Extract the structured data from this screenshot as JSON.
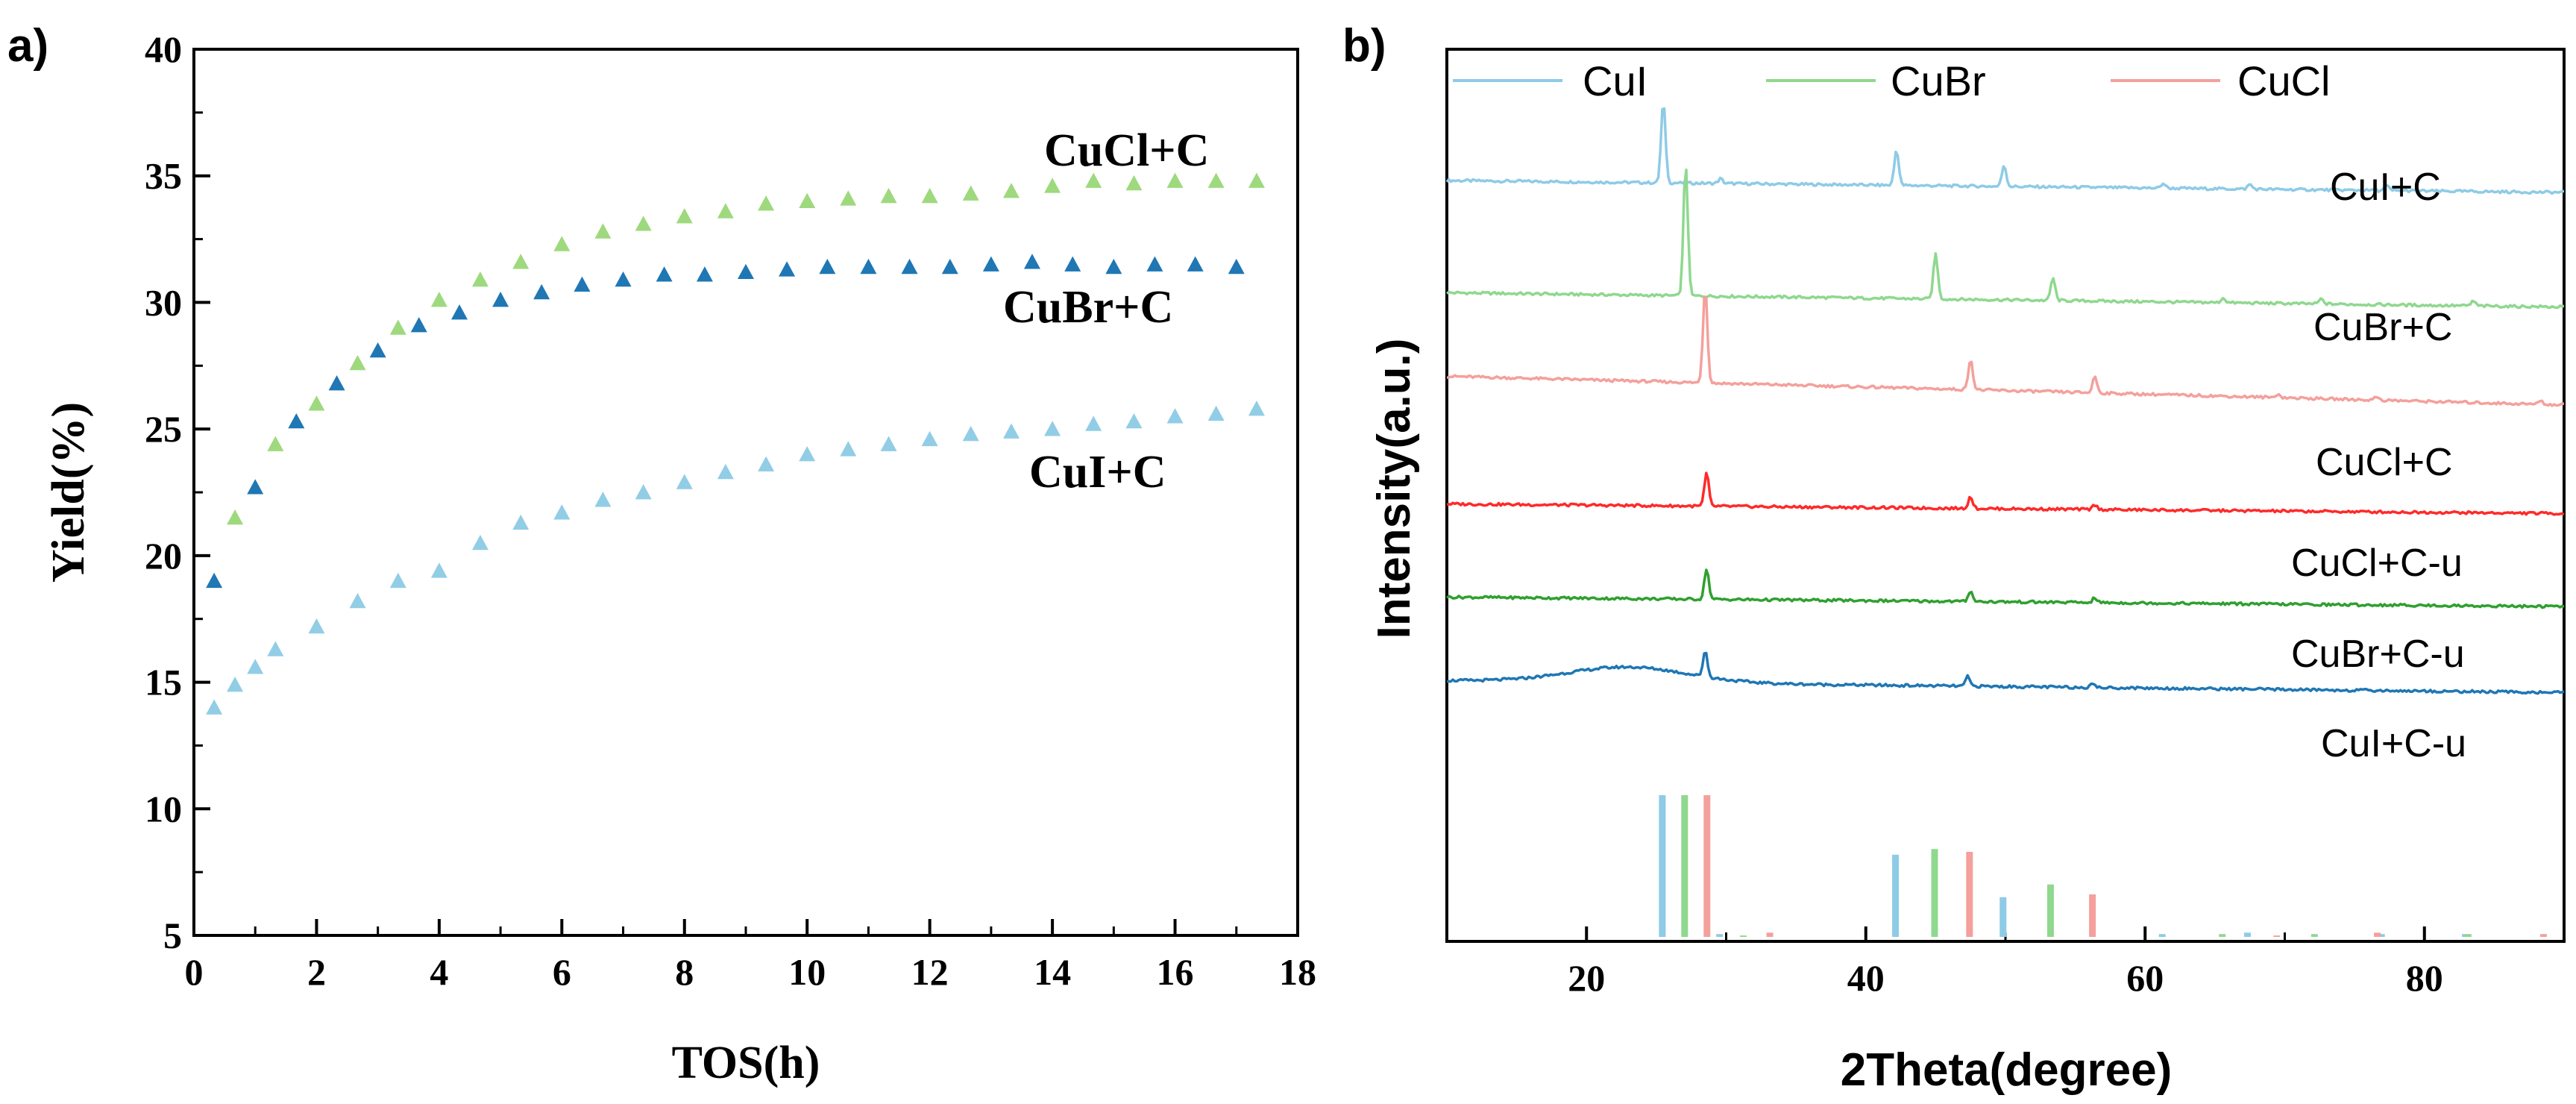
{
  "panel_a_label": "a)",
  "panel_b_label": "b)",
  "colors": {
    "cucl_c": "#9ed97e",
    "cubr_c": "#1f77b4",
    "cui_c": "#92cde6",
    "cui_ref": "#8ecbe6",
    "cubr_ref": "#8fd88f",
    "cucl_ref": "#f4a09c",
    "cucl_c_u": "#ff2a2a",
    "cubr_c_u": "#2fa02f",
    "cui_c_u": "#1f77b4"
  },
  "chart_data": [
    {
      "type": "scatter",
      "marker": "triangle",
      "xlabel": "TOS(h)",
      "ylabel": "Yield(%)",
      "xlim": [
        0,
        18
      ],
      "ylim": [
        5,
        40
      ],
      "xticks": [
        "0",
        "2",
        "4",
        "6",
        "8",
        "10",
        "12",
        "14",
        "16",
        "18"
      ],
      "yticks": [
        "5",
        "10",
        "15",
        "20",
        "25",
        "30",
        "35",
        "40"
      ],
      "series": [
        {
          "name": "CuCl+C",
          "x": [
            0.67,
            1.33,
            2.0,
            2.67,
            3.33,
            4.0,
            4.67,
            5.33,
            6.0,
            6.67,
            7.33,
            8.0,
            8.67,
            9.33,
            10.0,
            10.67,
            11.33,
            12.0,
            12.67,
            13.33,
            14.0,
            14.67,
            15.33,
            16.0,
            16.67,
            17.33
          ],
          "y": [
            21.5,
            24.4,
            26.0,
            27.6,
            29.0,
            30.1,
            30.9,
            31.6,
            32.3,
            32.8,
            33.1,
            33.4,
            33.6,
            33.9,
            34.0,
            34.1,
            34.2,
            34.2,
            34.3,
            34.4,
            34.6,
            34.8,
            34.7,
            34.8,
            34.8,
            34.8
          ]
        },
        {
          "name": "CuBr+C",
          "x": [
            0.33,
            1.0,
            1.67,
            2.33,
            3.0,
            3.67,
            4.33,
            5.0,
            5.67,
            6.33,
            7.0,
            7.67,
            8.33,
            9.0,
            9.67,
            10.33,
            11.0,
            11.67,
            12.33,
            13.0,
            13.67,
            14.33,
            15.0,
            15.67,
            16.33,
            17.0
          ],
          "y": [
            19.0,
            22.7,
            25.3,
            26.8,
            28.1,
            29.1,
            29.6,
            30.1,
            30.4,
            30.7,
            30.9,
            31.1,
            31.1,
            31.2,
            31.3,
            31.4,
            31.4,
            31.4,
            31.4,
            31.5,
            31.6,
            31.5,
            31.4,
            31.5,
            31.5,
            31.4
          ]
        },
        {
          "name": "CuI+C",
          "x": [
            0.33,
            0.67,
            1.0,
            1.33,
            2.0,
            2.67,
            3.33,
            4.0,
            4.67,
            5.33,
            6.0,
            6.67,
            7.33,
            8.0,
            8.67,
            9.33,
            10.0,
            10.67,
            11.33,
            12.0,
            12.67,
            13.33,
            14.0,
            14.67,
            15.33,
            16.0,
            16.67,
            17.33
          ],
          "y": [
            14.0,
            14.9,
            15.6,
            16.3,
            17.2,
            18.2,
            19.0,
            19.4,
            20.5,
            21.3,
            21.7,
            22.2,
            22.5,
            22.9,
            23.3,
            23.6,
            24.0,
            24.2,
            24.4,
            24.6,
            24.8,
            24.9,
            25.0,
            25.2,
            25.3,
            25.5,
            25.6,
            25.8
          ]
        }
      ],
      "labels": [
        {
          "text": "CuCl+C",
          "series": "CuCl+C"
        },
        {
          "text": "CuBr+C",
          "series": "CuBr+C"
        },
        {
          "text": "CuI+C",
          "series": "CuI+C"
        }
      ]
    },
    {
      "type": "line",
      "xlabel": "2Theta(degree)",
      "ylabel": "Intensity(a.u.)",
      "xlim": [
        10,
        90
      ],
      "xticks": [
        "20",
        "40",
        "60",
        "80"
      ],
      "legend": [
        "CuI",
        "CuBr",
        "CuCl"
      ],
      "legend_position": "top",
      "traces": [
        {
          "name": "CuI+C",
          "color_key": "cui_ref",
          "baseline_start": 6.0,
          "baseline_end": 5.0,
          "offset": 1,
          "peaks": [
            [
              25.5,
              6.8
            ],
            [
              42.2,
              3.0
            ],
            [
              49.9,
              1.8
            ],
            [
              29.6,
              0.4
            ],
            [
              61.3,
              0.4
            ],
            [
              67.5,
              0.4
            ],
            [
              77.3,
              0.4
            ]
          ]
        },
        {
          "name": "CuBr+C",
          "color_key": "cubr_ref",
          "baseline_start": 4.6,
          "baseline_end": 3.4,
          "offset": 2,
          "peaks": [
            [
              27.1,
              11.0
            ],
            [
              45.0,
              3.8
            ],
            [
              53.4,
              1.9
            ],
            [
              65.6,
              0.4
            ],
            [
              72.6,
              0.4
            ],
            [
              83.5,
              0.4
            ]
          ]
        },
        {
          "name": "CuCl+C",
          "color_key": "cucl_ref",
          "baseline_start": 5.6,
          "baseline_end": 3.2,
          "offset": 3,
          "peaks": [
            [
              28.5,
              8.0
            ],
            [
              47.5,
              2.6
            ],
            [
              56.4,
              1.4
            ],
            [
              69.5,
              0.3
            ],
            [
              76.6,
              0.3
            ],
            [
              88.3,
              0.3
            ]
          ]
        },
        {
          "name": "CuCl+C-u",
          "color_key": "cucl_c_u",
          "baseline_start": 2.9,
          "baseline_end": 2.1,
          "offset": 4,
          "peaks": [
            [
              28.6,
              2.8
            ],
            [
              47.5,
              1.0
            ],
            [
              56.4,
              0.4
            ]
          ]
        },
        {
          "name": "CuBr+C-u",
          "color_key": "cubr_c_u",
          "baseline_start": 3.1,
          "baseline_end": 2.3,
          "offset": 5,
          "peaks": [
            [
              28.6,
              2.6
            ],
            [
              47.5,
              0.9
            ],
            [
              56.4,
              0.4
            ]
          ]
        },
        {
          "name": "CuI+C-u",
          "color_key": "cui_c_u",
          "baseline_start": 4.1,
          "baseline_end": 3.1,
          "offset": 6,
          "peaks": [
            [
              28.5,
              2.2
            ],
            [
              47.3,
              0.8
            ],
            [
              56.2,
              0.4
            ]
          ],
          "hump": [
            23.0,
            1.3
          ]
        }
      ],
      "trace_labels": [
        "CuI+C",
        "CuBr+C",
        "CuCl+C",
        "CuCl+C-u",
        "CuBr+C-u",
        "CuI+C-u"
      ],
      "reference_sticks": [
        {
          "name": "CuI",
          "color_key": "cui_ref",
          "positions": [
            25.4,
            29.5,
            42.1,
            49.8,
            61.2,
            67.3,
            76.9,
            82.9
          ],
          "intensities": [
            100,
            2,
            58,
            28,
            2,
            3,
            2,
            2
          ]
        },
        {
          "name": "CuBr",
          "color_key": "cubr_ref",
          "positions": [
            27.0,
            31.2,
            44.9,
            53.2,
            65.5,
            72.1,
            83.1
          ],
          "intensities": [
            100,
            1,
            62,
            37,
            2,
            2,
            2
          ]
        },
        {
          "name": "CuCl",
          "color_key": "cucl_ref",
          "positions": [
            28.6,
            33.1,
            47.4,
            56.2,
            69.4,
            76.6,
            88.5
          ],
          "intensities": [
            100,
            3,
            60,
            30,
            1,
            3,
            2
          ]
        }
      ]
    }
  ]
}
